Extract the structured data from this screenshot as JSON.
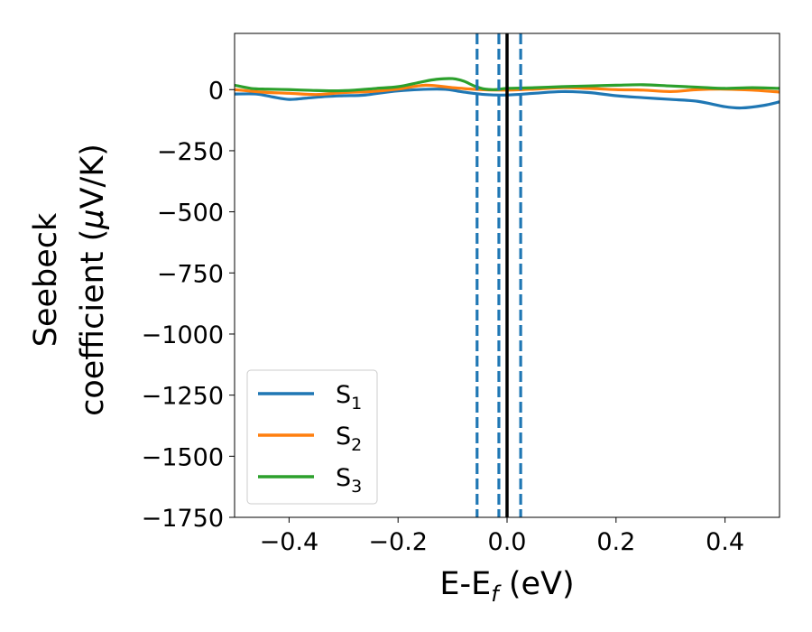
{
  "chart_data": {
    "type": "line",
    "title": "",
    "xlabel": {
      "main": "E-E",
      "sub": "f",
      "unit": " (eV)"
    },
    "ylabel": {
      "line1": "Seebeck",
      "line2_main": "coefficient  (",
      "line2_mu": "μ",
      "line2_unit": "V/K)"
    },
    "xlim": [
      -0.5,
      0.5
    ],
    "ylim": [
      -1750,
      230
    ],
    "xticks": [
      -0.4,
      -0.2,
      0.0,
      0.2,
      0.4
    ],
    "xtick_labels": [
      "−0.4",
      "−0.2",
      "0.0",
      "0.2",
      "0.4"
    ],
    "yticks": [
      0,
      -250,
      -500,
      -750,
      -1000,
      -1250,
      -1500,
      -1750
    ],
    "ytick_labels": [
      "0",
      "−250",
      "−500",
      "−750",
      "−1000",
      "−1250",
      "−1500",
      "−1750"
    ],
    "grid": false,
    "legend_position": "lower-left",
    "vlines": [
      {
        "x": 0.0,
        "style": "solid",
        "color": "#000000"
      },
      {
        "x": -0.055,
        "style": "dashed",
        "color": "#1f77b4"
      },
      {
        "x": -0.015,
        "style": "dashed",
        "color": "#1f77b4"
      },
      {
        "x": 0.025,
        "style": "dashed",
        "color": "#1f77b4"
      }
    ],
    "series": [
      {
        "name": "S",
        "sub": "1",
        "color": "#1f77b4",
        "x": [
          -0.5,
          -0.46,
          -0.43,
          -0.4,
          -0.37,
          -0.33,
          -0.3,
          -0.26,
          -0.2,
          -0.12,
          -0.08,
          -0.04,
          0.0,
          0.05,
          0.1,
          0.15,
          0.2,
          0.25,
          0.3,
          0.35,
          0.4,
          0.43,
          0.47,
          0.5
        ],
        "y": [
          -18,
          -18,
          -30,
          -40,
          -35,
          -28,
          -25,
          -22,
          -5,
          2,
          -10,
          -20,
          -22,
          -15,
          -8,
          -12,
          -25,
          -33,
          -40,
          -48,
          -70,
          -75,
          -65,
          -50
        ]
      },
      {
        "name": "S",
        "sub": "2",
        "color": "#ff7f0e",
        "x": [
          -0.5,
          -0.45,
          -0.4,
          -0.35,
          -0.3,
          -0.25,
          -0.2,
          -0.15,
          -0.1,
          -0.05,
          0.0,
          0.05,
          0.1,
          0.15,
          0.2,
          0.25,
          0.3,
          0.35,
          0.4,
          0.45,
          0.5
        ],
        "y": [
          0,
          -10,
          -15,
          -20,
          -12,
          -8,
          2,
          18,
          8,
          0,
          -2,
          2,
          8,
          5,
          0,
          -2,
          -8,
          0,
          2,
          -2,
          -10
        ]
      },
      {
        "name": "S",
        "sub": "3",
        "color": "#2ca02c",
        "x": [
          -0.5,
          -0.47,
          -0.44,
          -0.4,
          -0.36,
          -0.32,
          -0.28,
          -0.24,
          -0.2,
          -0.16,
          -0.13,
          -0.1,
          -0.08,
          -0.06,
          -0.04,
          -0.02,
          0.0,
          0.05,
          0.1,
          0.15,
          0.2,
          0.25,
          0.3,
          0.35,
          0.4,
          0.45,
          0.5
        ],
        "y": [
          18,
          5,
          2,
          0,
          -3,
          -5,
          -2,
          5,
          12,
          30,
          42,
          45,
          35,
          15,
          2,
          0,
          5,
          8,
          12,
          15,
          18,
          20,
          15,
          10,
          5,
          8,
          5
        ]
      }
    ]
  }
}
